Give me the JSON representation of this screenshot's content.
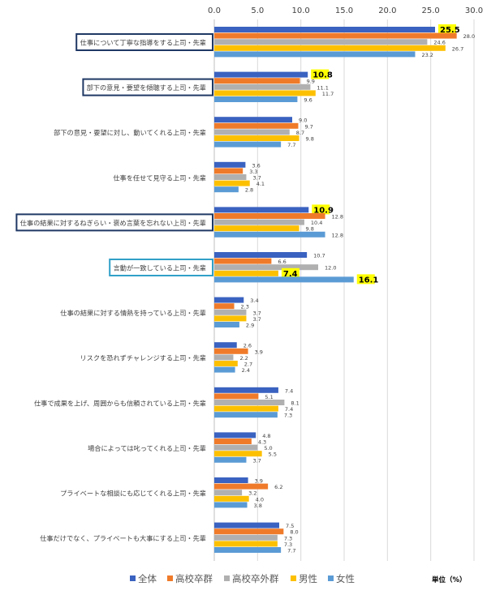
{
  "chart_data": {
    "type": "bar",
    "orientation": "horizontal",
    "unit_label": "単位（%）",
    "xlim": [
      0,
      30
    ],
    "xticks": [
      "0.0",
      "5.0",
      "10.0",
      "15.0",
      "20.0",
      "25.0",
      "30.0"
    ],
    "grid": true,
    "legend_placement": "bottom",
    "categories": [
      "仕事について丁寧な指導をする上司・先輩",
      "部下の意見・要望を傾聴する上司・先輩",
      "部下の意見・要望に対し、動いてくれる上司・先輩",
      "仕事を任せて見守る上司・先輩",
      "仕事の結果に対するねぎらい・褒め言葉を忘れない上司・先輩",
      "言動が一致している上司・先輩",
      "仕事の結果に対する情熱を持っている上司・先輩",
      "リスクを恐れずチャレンジする上司・先輩",
      "仕事で成果を上げ、周囲からも信頼されている上司・先輩",
      "場合によっては叱ってくれる上司・先輩",
      "プライベートな相談にも応じてくれる上司・先輩",
      "仕事だけでなく、プライベートも大事にする上司・先輩"
    ],
    "boxed_categories": {
      "0": "#1f3864",
      "1": "#1f3864",
      "4": "#1f3864",
      "5": "#31a0c8"
    },
    "series": [
      {
        "name": "全体",
        "color": "#3a62c0",
        "values": [
          25.5,
          10.8,
          9.0,
          3.6,
          10.9,
          10.7,
          3.4,
          2.6,
          7.4,
          4.8,
          3.9,
          7.5
        ]
      },
      {
        "name": "高校卒群",
        "color": "#ef7b2a",
        "values": [
          28.0,
          9.9,
          9.7,
          3.3,
          12.8,
          6.6,
          2.3,
          3.9,
          5.1,
          4.3,
          6.2,
          8.0
        ]
      },
      {
        "name": "高校卒外群",
        "color": "#b0b0b0",
        "values": [
          24.6,
          11.1,
          8.7,
          3.7,
          10.4,
          12.0,
          3.7,
          2.2,
          8.1,
          5.0,
          3.2,
          7.3
        ]
      },
      {
        "name": "男性",
        "color": "#fdc000",
        "values": [
          26.7,
          11.7,
          9.8,
          4.1,
          9.8,
          7.4,
          3.7,
          2.7,
          7.4,
          5.5,
          4.0,
          7.3
        ]
      },
      {
        "name": "女性",
        "color": "#5b9bd5",
        "values": [
          23.2,
          9.6,
          7.7,
          2.8,
          12.8,
          16.1,
          2.9,
          2.4,
          7.3,
          3.7,
          3.8,
          7.7
        ]
      }
    ],
    "highlighted_labels": [
      [
        0,
        0
      ],
      [
        1,
        0
      ],
      [
        4,
        0
      ],
      [
        5,
        3
      ],
      [
        5,
        4
      ]
    ]
  }
}
